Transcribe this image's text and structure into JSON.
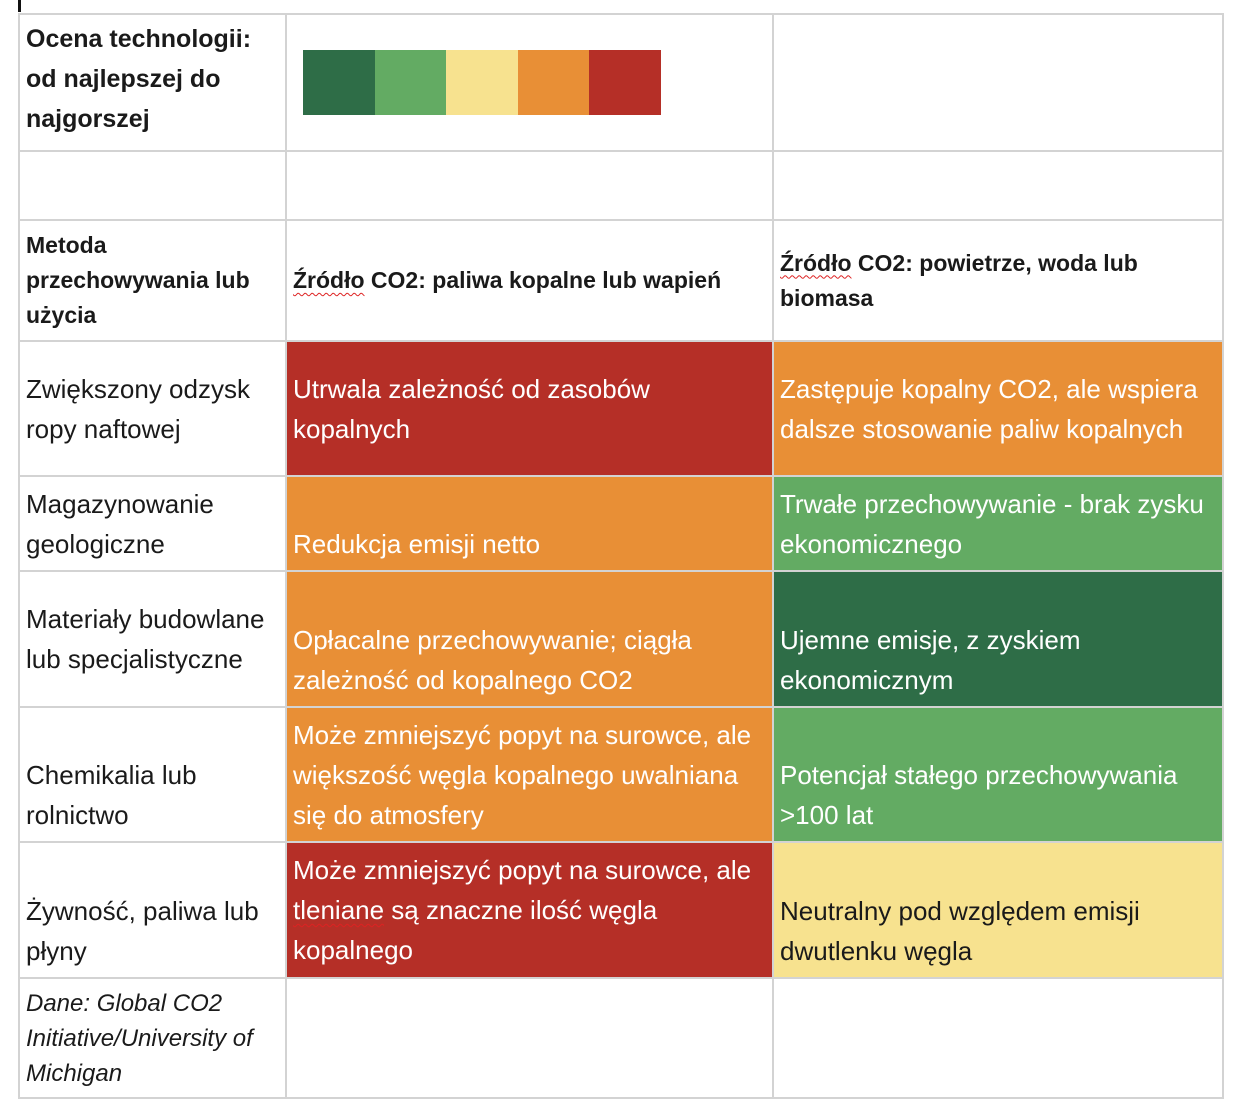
{
  "legend": {
    "title": "Ocena technologii: od najlepszej do najgorszej",
    "colors": [
      "#2e6d47",
      "#63ab63",
      "#f7e28f",
      "#e88f36",
      "#b52f27"
    ]
  },
  "header": {
    "col0": "Metoda przechowywania lub użycia",
    "col1_word": "Źródło",
    "col1_rest": " CO2: paliwa kopalne lub wapień",
    "col2_word": "Źródło",
    "col2_rest": " CO2: powietrze, woda lub biomasa"
  },
  "rows": [
    {
      "label": "Zwiększony odzysk ropy naftowej",
      "fossil": {
        "text": "Utrwala zależność od zasobów kopalnych",
        "color": "#b52f27"
      },
      "air": {
        "text": "Zastępuje kopalny CO2, ale wspiera dalsze stosowanie paliw kopalnych",
        "color": "#e88f36"
      }
    },
    {
      "label": "Magazynowanie geologiczne",
      "fossil": {
        "text": "Redukcja emisji netto",
        "color": "#e88f36"
      },
      "air": {
        "text": "Trwałe przechowywanie - brak zysku ekonomicznego",
        "color": "#63ab63"
      }
    },
    {
      "label": "Materiały budowlane lub specjalistyczne",
      "fossil": {
        "text": "Opłacalne przechowywanie; ciągła zależność od kopalnego CO2",
        "color": "#e88f36"
      },
      "air": {
        "text": "Ujemne emisje, z zyskiem ekonomicznym",
        "color": "#2e6d47"
      }
    },
    {
      "label": "Chemikalia lub rolnictwo",
      "fossil": {
        "text": "Może zmniejszyć popyt na surowce, ale większość węgla kopalnego uwalniana się do atmosfery",
        "color": "#e88f36"
      },
      "air": {
        "text": "Potencjał stałego przechowywania >100 lat",
        "color": "#63ab63"
      }
    },
    {
      "label": "Żywność, paliwa lub płyny",
      "fossil": {
        "text_a": "Może zmniejszyć popyt na surowce, ale ",
        "text_b": "tleniane",
        "text_c": " są znaczne ilość węgla kopalnego",
        "color": "#b52f27"
      },
      "air": {
        "text": "Neutralny pod względem emisji dwutlenku węgla",
        "color": "#f7e28f"
      }
    }
  ],
  "footer": "Dane: Global CO2 Initiative/University of Michigan"
}
